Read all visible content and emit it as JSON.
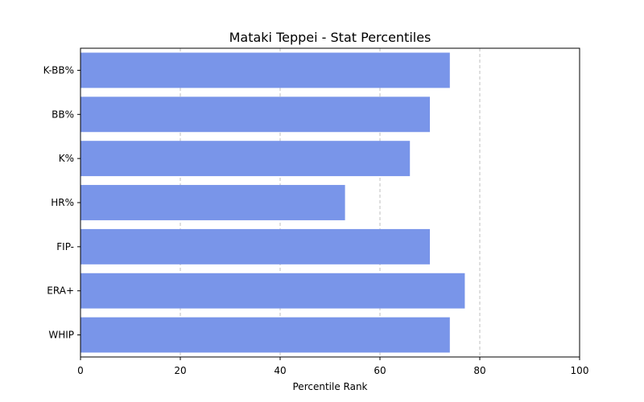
{
  "chart_data": {
    "type": "bar",
    "orientation": "horizontal",
    "title": "Mataki Teppei - Stat Percentiles",
    "xlabel": "Percentile Rank",
    "ylabel": "",
    "xlim": [
      0,
      100
    ],
    "xticks": [
      0,
      20,
      40,
      60,
      80,
      100
    ],
    "grid": "x-dashed",
    "bar_color": "#7995e9",
    "categories": [
      "K-BB%",
      "BB%",
      "K%",
      "HR%",
      "FIP-",
      "ERA+",
      "WHIP"
    ],
    "values": [
      74,
      70,
      66,
      53,
      70,
      77,
      74
    ]
  }
}
